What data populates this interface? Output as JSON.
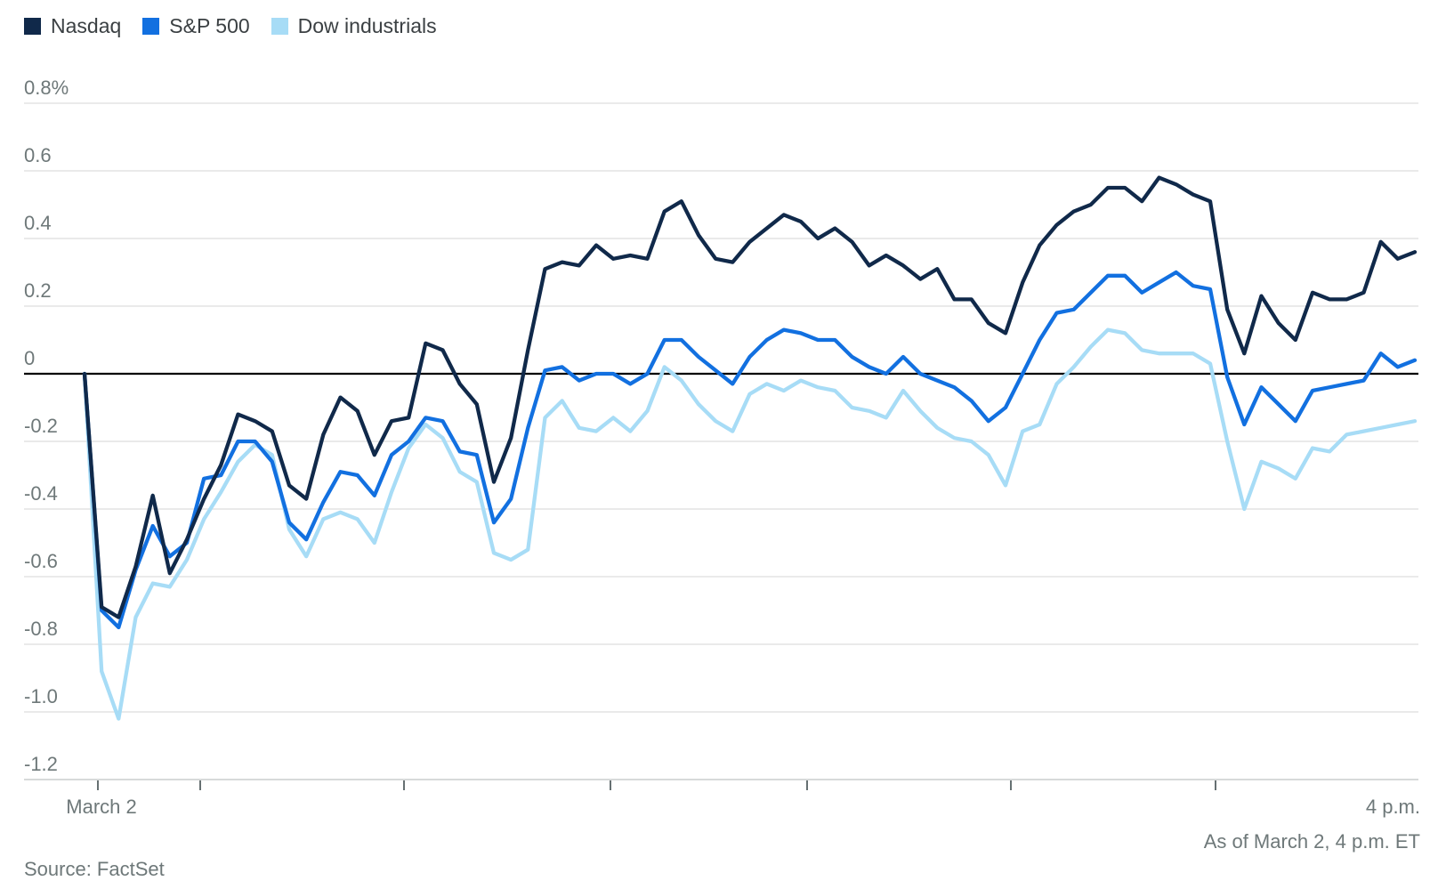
{
  "chart_data": {
    "type": "line",
    "title": "",
    "unit": "%",
    "ylim": [
      -1.2,
      0.8
    ],
    "grid": "horizontal",
    "legend_position": "top-left",
    "y_ticks": [
      "0.8%",
      "0.6",
      "0.4",
      "0.2",
      "0",
      "-0.2",
      "-0.4",
      "-0.6",
      "-0.8",
      "-1.0",
      "-1.2"
    ],
    "y_tick_values": [
      0.8,
      0.6,
      0.4,
      0.2,
      0,
      -0.2,
      -0.4,
      -0.6,
      -0.8,
      -1.0,
      -1.2
    ],
    "x_axis_labels": [
      "March 2",
      "4 p.m."
    ],
    "x_range": "March 2, 9:30 a.m. to 4 p.m. ET, 5-minute intervals",
    "series": [
      {
        "name": "Nasdaq",
        "color": "#10294a",
        "values": [
          0.0,
          -0.69,
          -0.72,
          -0.57,
          -0.36,
          -0.59,
          -0.49,
          -0.37,
          -0.27,
          -0.12,
          -0.14,
          -0.17,
          -0.33,
          -0.37,
          -0.18,
          -0.07,
          -0.11,
          -0.24,
          -0.14,
          -0.13,
          0.09,
          0.07,
          -0.03,
          -0.09,
          -0.32,
          -0.19,
          0.07,
          0.31,
          0.33,
          0.32,
          0.38,
          0.34,
          0.35,
          0.34,
          0.48,
          0.51,
          0.41,
          0.34,
          0.33,
          0.39,
          0.43,
          0.47,
          0.45,
          0.4,
          0.43,
          0.39,
          0.32,
          0.35,
          0.32,
          0.28,
          0.31,
          0.22,
          0.22,
          0.15,
          0.12,
          0.27,
          0.38,
          0.44,
          0.48,
          0.5,
          0.55,
          0.55,
          0.51,
          0.58,
          0.56,
          0.53,
          0.51,
          0.19,
          0.06,
          0.23,
          0.15,
          0.1,
          0.24,
          0.22,
          0.22,
          0.24,
          0.39,
          0.34,
          0.36
        ]
      },
      {
        "name": "S&P 500",
        "color": "#1270e0",
        "values": [
          0.0,
          -0.7,
          -0.75,
          -0.58,
          -0.45,
          -0.54,
          -0.5,
          -0.31,
          -0.3,
          -0.2,
          -0.2,
          -0.26,
          -0.44,
          -0.49,
          -0.38,
          -0.29,
          -0.3,
          -0.36,
          -0.24,
          -0.2,
          -0.13,
          -0.14,
          -0.23,
          -0.24,
          -0.44,
          -0.37,
          -0.16,
          0.01,
          0.02,
          -0.02,
          0.0,
          0.0,
          -0.03,
          0.0,
          0.1,
          0.1,
          0.05,
          0.01,
          -0.03,
          0.05,
          0.1,
          0.13,
          0.12,
          0.1,
          0.1,
          0.05,
          0.02,
          0.0,
          0.05,
          0.0,
          -0.02,
          -0.04,
          -0.08,
          -0.14,
          -0.1,
          0.0,
          0.1,
          0.18,
          0.19,
          0.24,
          0.29,
          0.29,
          0.24,
          0.27,
          0.3,
          0.26,
          0.25,
          -0.01,
          -0.15,
          -0.04,
          -0.09,
          -0.14,
          -0.05,
          -0.04,
          -0.03,
          -0.02,
          0.06,
          0.02,
          0.04
        ]
      },
      {
        "name": "Dow industrials",
        "color": "#a7dcf6",
        "values": [
          0.0,
          -0.88,
          -1.02,
          -0.72,
          -0.62,
          -0.63,
          -0.55,
          -0.43,
          -0.35,
          -0.26,
          -0.21,
          -0.24,
          -0.46,
          -0.54,
          -0.43,
          -0.41,
          -0.43,
          -0.5,
          -0.35,
          -0.22,
          -0.15,
          -0.19,
          -0.29,
          -0.32,
          -0.53,
          -0.55,
          -0.52,
          -0.13,
          -0.08,
          -0.16,
          -0.17,
          -0.13,
          -0.17,
          -0.11,
          0.02,
          -0.02,
          -0.09,
          -0.14,
          -0.17,
          -0.06,
          -0.03,
          -0.05,
          -0.02,
          -0.04,
          -0.05,
          -0.1,
          -0.11,
          -0.13,
          -0.05,
          -0.11,
          -0.16,
          -0.19,
          -0.2,
          -0.24,
          -0.33,
          -0.17,
          -0.15,
          -0.03,
          0.02,
          0.08,
          0.13,
          0.12,
          0.07,
          0.06,
          0.06,
          0.06,
          0.03,
          -0.2,
          -0.4,
          -0.26,
          -0.28,
          -0.31,
          -0.22,
          -0.23,
          -0.18,
          -0.17,
          -0.16,
          -0.15,
          -0.14
        ]
      }
    ]
  },
  "footer": {
    "source": "Source: FactSet",
    "as_of": "As of March 2, 4 p.m. ET"
  }
}
